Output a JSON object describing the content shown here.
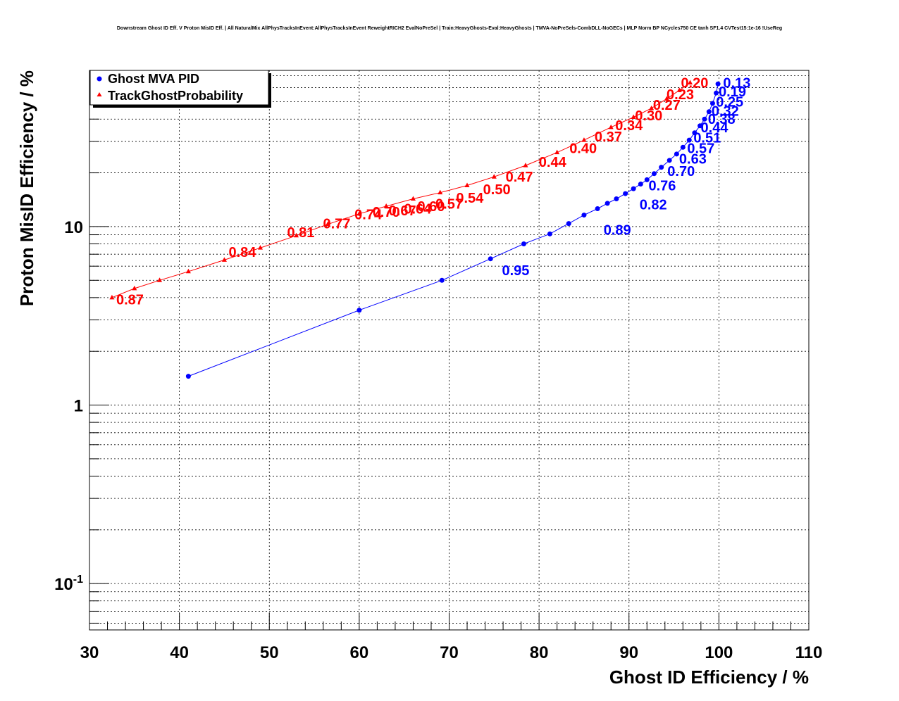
{
  "chart_data": {
    "type": "scatter",
    "title": "Downstream Ghost ID Eff. V Proton MisID Eff. | All NaturalMix AllPhysTracksInEvent:AllPhysTracksInEvent ReweightRICH2 EvalNoPreSel | Train:HeavyGhosts-Eval:HeavyGhosts | TMVA-NoPreSels-CombDLL-NoGECs | MLP Norm BP NCycles750 CE tanh SF1.4 CVTest15:1e-16 !UseReg",
    "xlabel": "Ghost ID Efficiency / %",
    "ylabel": "Proton MisID Efficiency / %",
    "xlim": [
      30,
      110
    ],
    "ylim": [
      0.055,
      75
    ],
    "yscale": "log",
    "grid": true,
    "legend_position": "top-left",
    "x_ticks": [
      30,
      40,
      50,
      60,
      70,
      80,
      90,
      100,
      110
    ],
    "y_ticks": [
      {
        "value": 10,
        "base": "10",
        "exp": ""
      },
      {
        "value": 1,
        "base": "1",
        "exp": ""
      },
      {
        "value": 0.1,
        "base": "10",
        "exp": "-1"
      }
    ],
    "series": [
      {
        "name": "Ghost MVA PID",
        "color": "#0000ff",
        "marker": "circle",
        "x": [
          41.0,
          60.0,
          69.2,
          74.6,
          78.3,
          81.2,
          83.3,
          85.0,
          86.5,
          87.6,
          88.6,
          89.6,
          90.5,
          91.3,
          92.0,
          92.8,
          93.6,
          94.5,
          95.3,
          96.0,
          96.7,
          97.3,
          97.9,
          98.4,
          98.9,
          99.3,
          99.7,
          99.9
        ],
        "y": [
          1.45,
          3.4,
          5.0,
          6.6,
          8.0,
          9.1,
          10.4,
          11.6,
          12.6,
          13.5,
          14.3,
          15.3,
          16.3,
          17.3,
          18.3,
          19.8,
          21.5,
          23.5,
          25.5,
          27.8,
          30.5,
          33.5,
          36.7,
          40.0,
          44.0,
          49.0,
          56.0,
          63.0
        ]
      },
      {
        "name": "TrackGhostProbability",
        "color": "#ff0000",
        "marker": "triangle",
        "x": [
          32.5,
          35.0,
          37.8,
          41.0,
          45.0,
          49.0,
          53.0,
          56.5,
          60.0,
          63.0,
          66.0,
          69.0,
          72.0,
          75.0,
          78.5,
          82.0,
          85.0,
          88.0,
          90.5,
          92.5,
          94.2,
          95.6,
          96.8
        ],
        "y": [
          4.0,
          4.5,
          5.0,
          5.6,
          6.5,
          7.6,
          8.9,
          10.3,
          11.8,
          13.0,
          14.3,
          15.5,
          17.0,
          19.0,
          22.0,
          26.0,
          30.5,
          36.0,
          41.0,
          46.0,
          52.0,
          58.0,
          64.0
        ]
      }
    ],
    "annotations": [
      {
        "text": "0.13",
        "x": 102.0,
        "y": 64.0,
        "series": 0
      },
      {
        "text": "0.19",
        "x": 101.5,
        "y": 57.0,
        "series": 0
      },
      {
        "text": "0.25",
        "x": 101.2,
        "y": 50.0,
        "series": 0
      },
      {
        "text": "0.32",
        "x": 100.7,
        "y": 44.5,
        "series": 0
      },
      {
        "text": "0.38",
        "x": 100.3,
        "y": 40.0,
        "series": 0
      },
      {
        "text": "0.44",
        "x": 99.5,
        "y": 36.0,
        "series": 0
      },
      {
        "text": "0.51",
        "x": 98.7,
        "y": 31.5,
        "series": 0
      },
      {
        "text": "0.57",
        "x": 98.0,
        "y": 27.5,
        "series": 0
      },
      {
        "text": "0.63",
        "x": 97.1,
        "y": 24.0,
        "series": 0
      },
      {
        "text": "0.70",
        "x": 95.8,
        "y": 20.5,
        "series": 0
      },
      {
        "text": "0.76",
        "x": 93.7,
        "y": 17.0,
        "series": 0
      },
      {
        "text": "0.82",
        "x": 92.7,
        "y": 13.3,
        "series": 0
      },
      {
        "text": "0.89",
        "x": 88.7,
        "y": 9.6,
        "series": 0
      },
      {
        "text": "0.95",
        "x": 77.4,
        "y": 5.7,
        "series": 0
      },
      {
        "text": "0.20",
        "x": 97.3,
        "y": 64.0,
        "series": 1
      },
      {
        "text": "0.23",
        "x": 95.7,
        "y": 55.0,
        "series": 1
      },
      {
        "text": "0.27",
        "x": 94.2,
        "y": 48.0,
        "series": 1
      },
      {
        "text": "0.30",
        "x": 92.2,
        "y": 42.0,
        "series": 1
      },
      {
        "text": "0.34",
        "x": 90.0,
        "y": 37.0,
        "series": 1
      },
      {
        "text": "0.37",
        "x": 87.7,
        "y": 32.0,
        "series": 1
      },
      {
        "text": "0.40",
        "x": 84.9,
        "y": 27.5,
        "series": 1
      },
      {
        "text": "0.44",
        "x": 81.5,
        "y": 23.0,
        "series": 1
      },
      {
        "text": "0.47",
        "x": 77.8,
        "y": 19.0,
        "series": 1
      },
      {
        "text": "0.50",
        "x": 75.3,
        "y": 16.2,
        "series": 1
      },
      {
        "text": "0.54",
        "x": 72.3,
        "y": 14.5,
        "series": 1
      },
      {
        "text": "0.57",
        "x": 70.0,
        "y": 13.4,
        "series": 1
      },
      {
        "text": "0.60",
        "x": 68.0,
        "y": 13.0,
        "series": 1
      },
      {
        "text": "0.64",
        "x": 66.5,
        "y": 12.6,
        "series": 1
      },
      {
        "text": "0.67",
        "x": 64.8,
        "y": 12.3,
        "series": 1
      },
      {
        "text": "0.70",
        "x": 63.0,
        "y": 12.1,
        "series": 1
      },
      {
        "text": "0.74",
        "x": 61.0,
        "y": 11.7,
        "series": 1
      },
      {
        "text": "0.77",
        "x": 57.5,
        "y": 10.4,
        "series": 1
      },
      {
        "text": "0.81",
        "x": 53.5,
        "y": 9.3,
        "series": 1
      },
      {
        "text": "0.84",
        "x": 47.0,
        "y": 7.2,
        "series": 1
      },
      {
        "text": "0.87",
        "x": 34.5,
        "y": 3.9,
        "series": 1
      }
    ]
  }
}
